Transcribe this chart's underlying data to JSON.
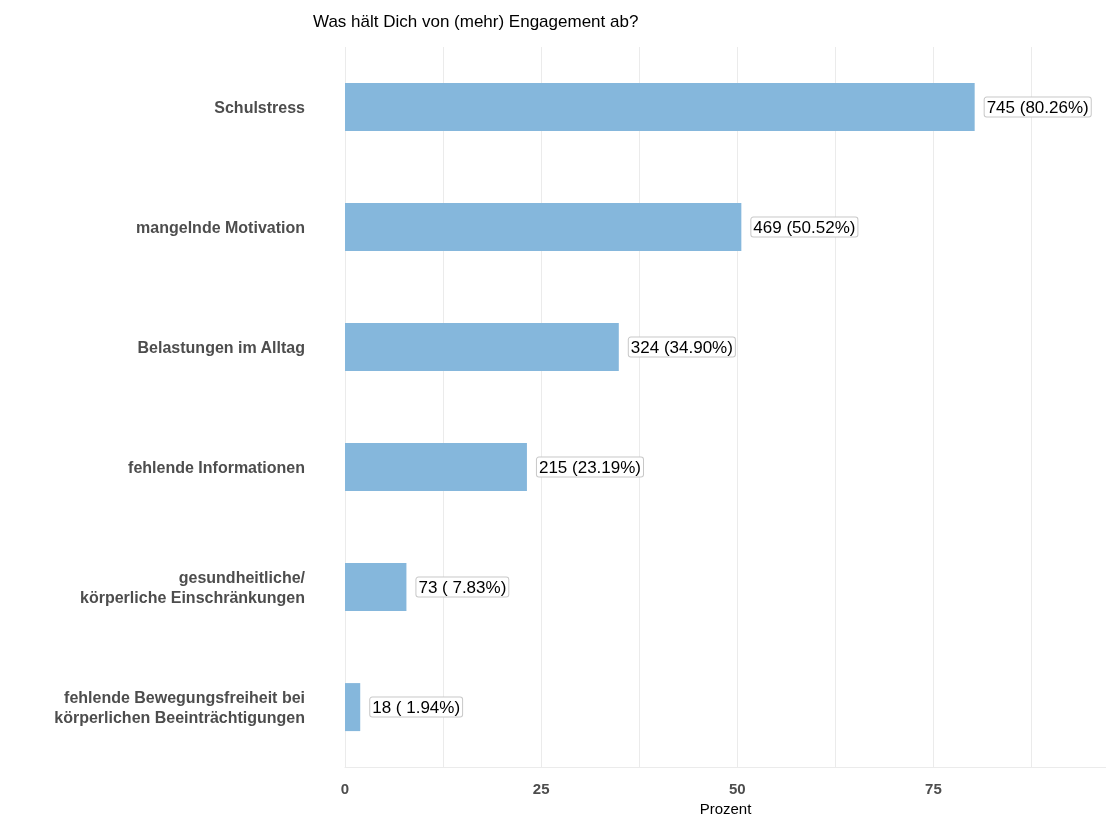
{
  "chart_data": {
    "type": "bar",
    "orientation": "horizontal",
    "title": "Was hält Dich von (mehr) Engagement ab?",
    "xlabel": "Prozent",
    "categories": [
      "Schulstress",
      "mangelnde Motivation",
      "Belastungen im Alltag",
      "fehlende Informationen",
      "gesundheitliche/\nkörperliche Einschränkungen",
      "fehlende Bewegungsfreiheit bei\nkörperlichen Beeinträchtigungen"
    ],
    "values": [
      80.26,
      50.52,
      34.9,
      23.19,
      7.83,
      1.94
    ],
    "value_labels": [
      "745 (80.26%)",
      "469 (50.52%)",
      "324 (34.90%)",
      "215 (23.19%)",
      "73 ( 7.83%)",
      "18 ( 1.94%)"
    ],
    "color": "#85b7dc",
    "xlim": [
      0,
      97
    ],
    "xticks": [
      0,
      {
        "value": 12.5,
        "label": null
      },
      25,
      {
        "value": 37.5,
        "label": null
      },
      50,
      {
        "value": 62.5,
        "label": null
      },
      75,
      {
        "value": 87.5,
        "label": null
      }
    ],
    "grid": "x"
  }
}
